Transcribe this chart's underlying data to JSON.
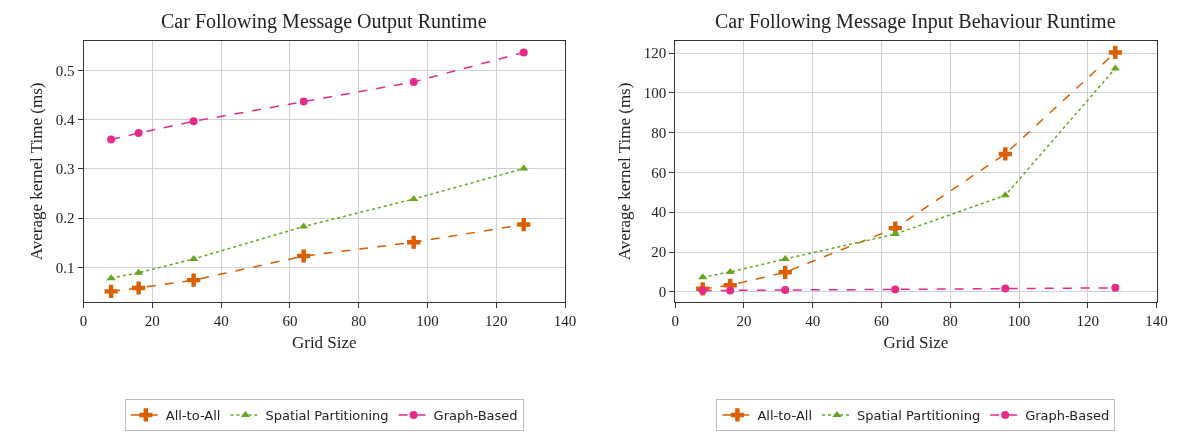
{
  "chart_data": [
    {
      "type": "line",
      "title": "Car Following Message Output Runtime",
      "xlabel": "Grid Size",
      "ylabel": "Average kernel Time (ms)",
      "x": [
        8,
        16,
        32,
        64,
        96,
        128
      ],
      "xlim": [
        0,
        140
      ],
      "xticks": [
        0,
        20,
        40,
        60,
        80,
        100,
        120,
        140
      ],
      "ylim": [
        0.03,
        0.56
      ],
      "yticks": [
        0.1,
        0.2,
        0.3,
        0.4,
        0.5
      ],
      "grid": true,
      "legend": "bottom",
      "series": [
        {
          "name": "All-to-All",
          "color": "#d95f02",
          "marker": "cross",
          "line_style": "dashed",
          "values": [
            0.051,
            0.058,
            0.074,
            0.123,
            0.151,
            0.187
          ]
        },
        {
          "name": "Spatial Partitioning",
          "color": "#66a61e",
          "marker": "triangle",
          "line_style": "dotted",
          "values": [
            0.078,
            0.089,
            0.117,
            0.183,
            0.239,
            0.301
          ]
        },
        {
          "name": "Graph-Based",
          "color": "#e7298a",
          "marker": "circle",
          "line_style": "dashed",
          "values": [
            0.36,
            0.373,
            0.397,
            0.437,
            0.477,
            0.537
          ]
        }
      ]
    },
    {
      "type": "line",
      "title": "Car Following Message Input Behaviour Runtime",
      "xlabel": "Grid Size",
      "ylabel": "Average kernel Time (ms)",
      "x": [
        8,
        16,
        32,
        64,
        96,
        128
      ],
      "xlim": [
        0,
        140
      ],
      "xticks": [
        0,
        20,
        40,
        60,
        80,
        100,
        120,
        140
      ],
      "ylim": [
        -5,
        126
      ],
      "yticks": [
        0,
        20,
        40,
        60,
        80,
        100,
        120
      ],
      "grid": true,
      "legend": "bottom",
      "series": [
        {
          "name": "All-to-All",
          "color": "#d95f02",
          "marker": "cross",
          "line_style": "dashed",
          "values": [
            1.5,
            3.3,
            9.8,
            32,
            69.3,
            120.3
          ]
        },
        {
          "name": "Spatial Partitioning",
          "color": "#66a61e",
          "marker": "triangle",
          "line_style": "dotted",
          "values": [
            7.3,
            10,
            16.5,
            29,
            48.5,
            112.3
          ]
        },
        {
          "name": "Graph-Based",
          "color": "#e7298a",
          "marker": "circle",
          "line_style": "dashed",
          "values": [
            0.6,
            0.7,
            0.9,
            1.2,
            1.6,
            2.0
          ]
        }
      ]
    }
  ]
}
